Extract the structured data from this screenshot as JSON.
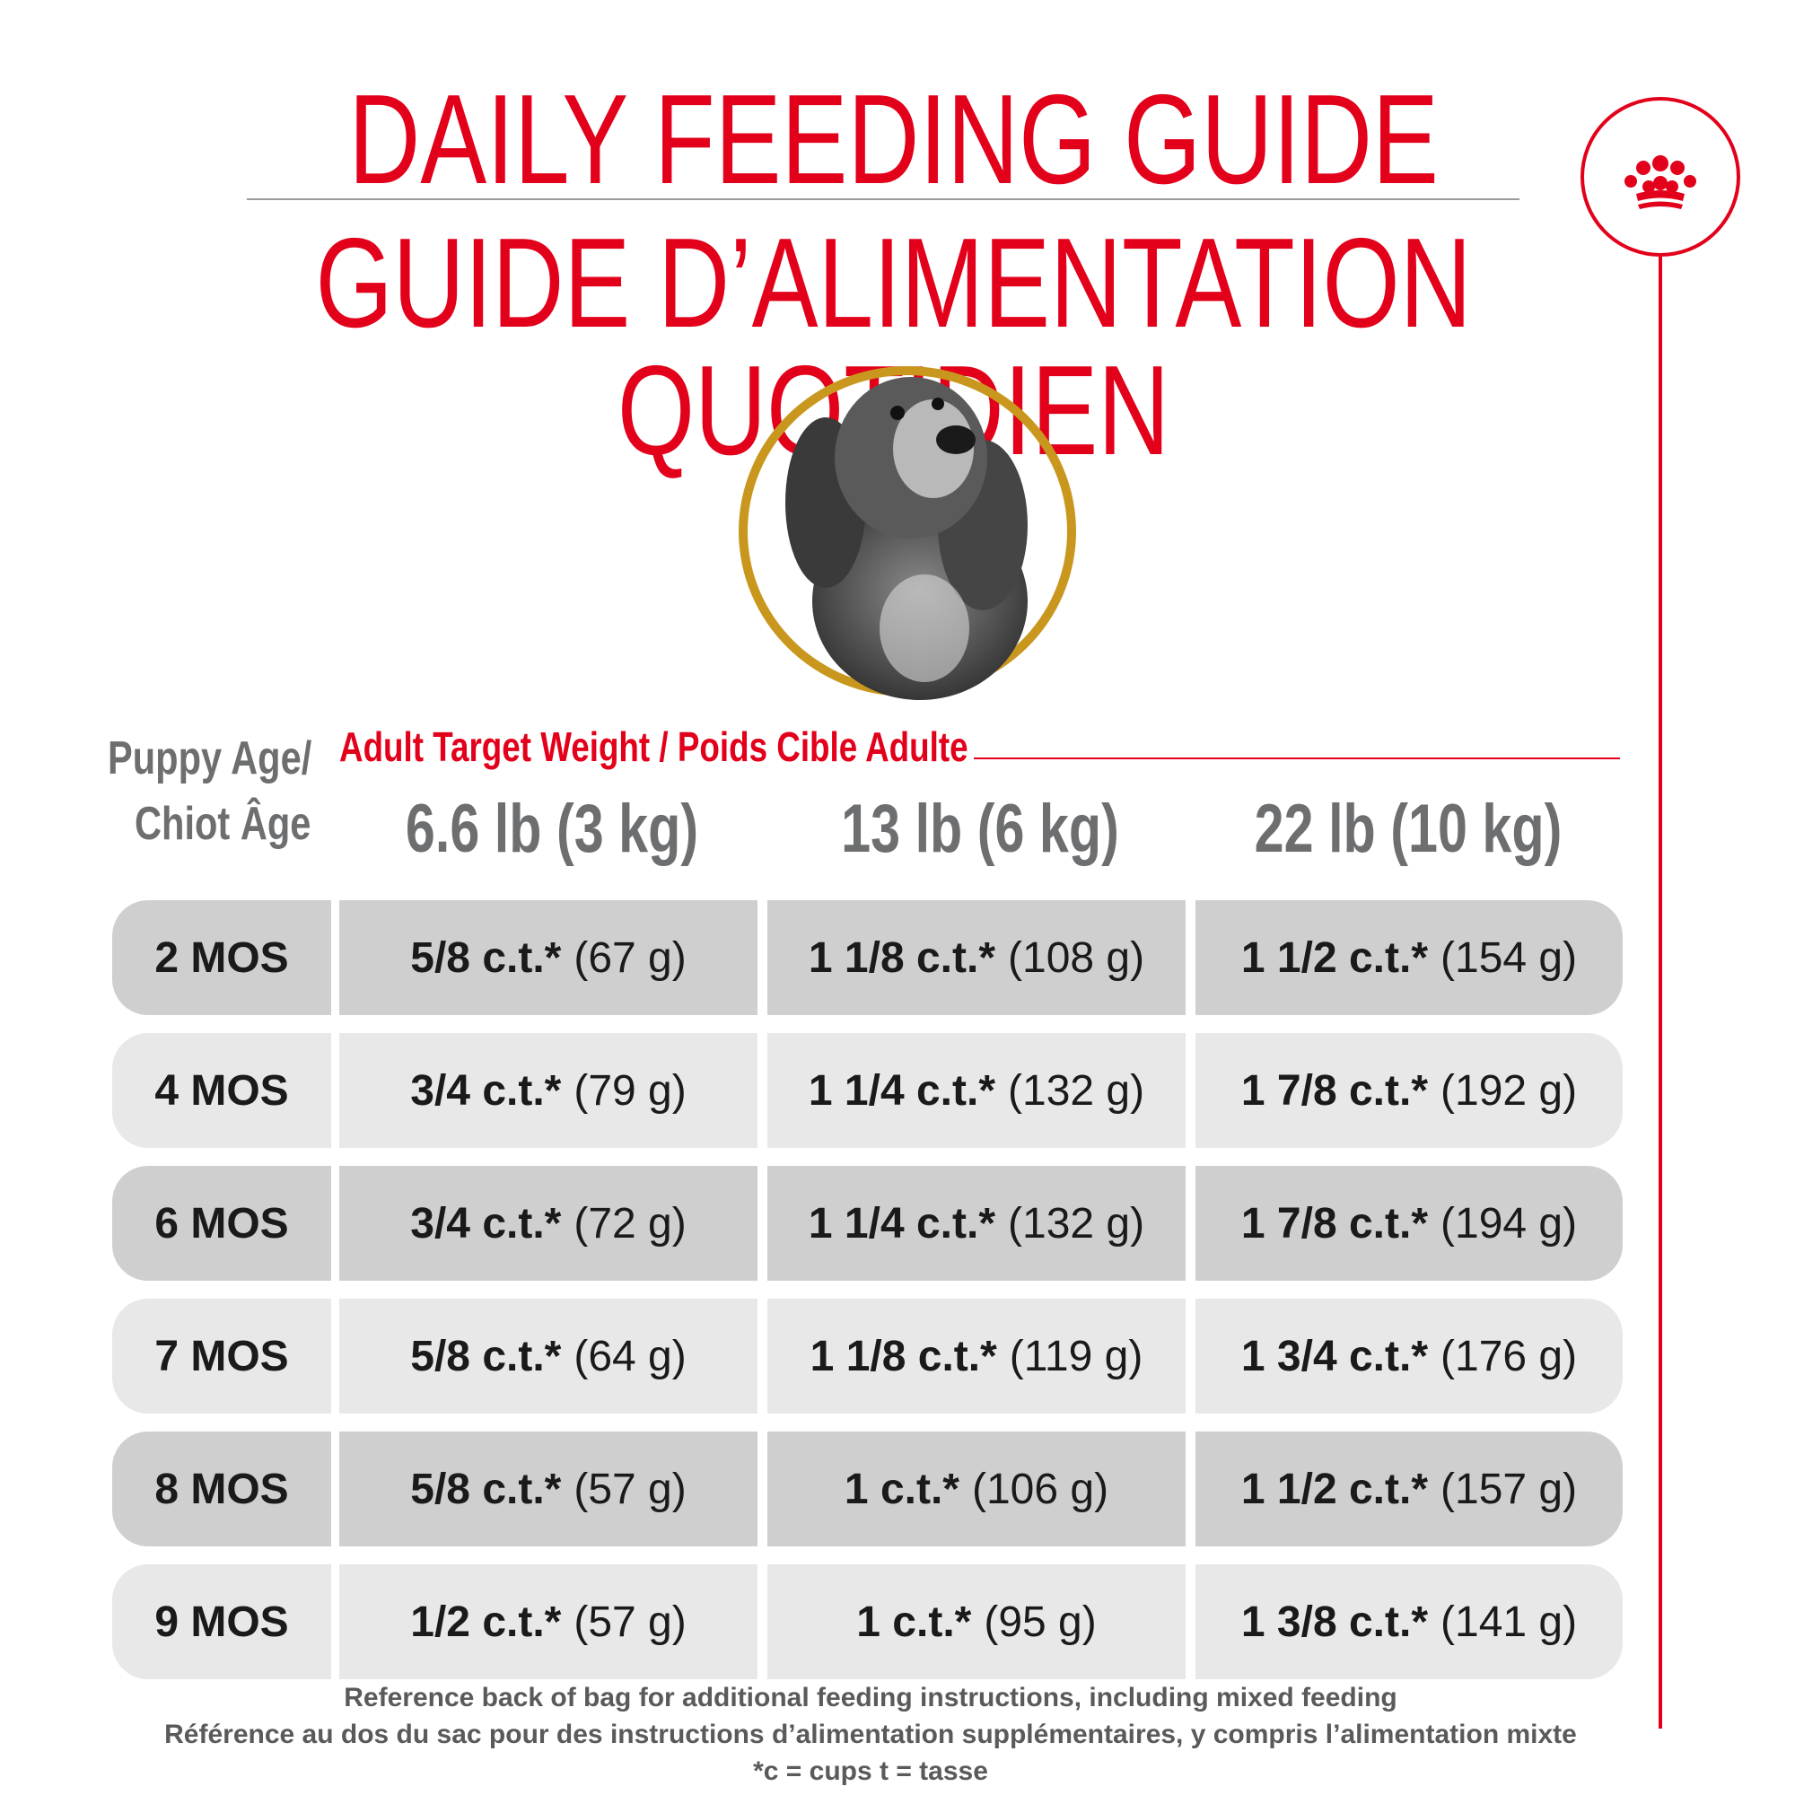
{
  "title_en": "DAILY FEEDING GUIDE",
  "title_fr": "GUIDE D’ALIMENTATION QUOTIDIEN",
  "age_label_line1": "Puppy Age/",
  "age_label_line2": "Chiot Âge",
  "target_weight_label": "Adult Target Weight / Poids Cible Adulte",
  "weights": [
    "6.6 lb (3 kg)",
    "13 lb (6 kg)",
    "22 lb (10 kg)"
  ],
  "rows": [
    {
      "age": "2 MOS",
      "cells": [
        {
          "qty": "5/8 c.t.*",
          "g": "(67 g)"
        },
        {
          "qty": "1 1/8 c.t.*",
          "g": "(108 g)"
        },
        {
          "qty": "1 1/2 c.t.*",
          "g": "(154 g)"
        }
      ]
    },
    {
      "age": "4 MOS",
      "cells": [
        {
          "qty": "3/4 c.t.*",
          "g": "(79 g)"
        },
        {
          "qty": "1 1/4 c.t.*",
          "g": "(132 g)"
        },
        {
          "qty": "1 7/8 c.t.*",
          "g": "(192 g)"
        }
      ]
    },
    {
      "age": "6 MOS",
      "cells": [
        {
          "qty": "3/4 c.t.*",
          "g": "(72 g)"
        },
        {
          "qty": "1 1/4 c.t.*",
          "g": "(132 g)"
        },
        {
          "qty": "1 7/8 c.t.*",
          "g": "(194 g)"
        }
      ]
    },
    {
      "age": "7 MOS",
      "cells": [
        {
          "qty": "5/8 c.t.*",
          "g": "(64 g)"
        },
        {
          "qty": "1 1/8 c.t.*",
          "g": "(119 g)"
        },
        {
          "qty": "1 3/4 c.t.*",
          "g": "(176 g)"
        }
      ]
    },
    {
      "age": "8 MOS",
      "cells": [
        {
          "qty": "5/8 c.t.*",
          "g": "(57 g)"
        },
        {
          "qty": "1 c.t.*",
          "g": "(106 g)"
        },
        {
          "qty": "1 1/2 c.t.*",
          "g": "(157 g)"
        }
      ]
    },
    {
      "age": "9 MOS",
      "cells": [
        {
          "qty": "1/2 c.t.*",
          "g": "(57 g)"
        },
        {
          "qty": "1 c.t.*",
          "g": "(95 g)"
        },
        {
          "qty": "1 3/8 c.t.*",
          "g": "(141 g)"
        }
      ]
    }
  ],
  "footer_en": "Reference back of bag for additional feeding instructions, including mixed feeding",
  "footer_fr": "Référence au dos du sac pour des instructions d’alimentation supplémentaires, y compris l’alimentation mixte",
  "footer_note": "*c = cups t = tasse",
  "colors": {
    "brand_red": "#e2001a",
    "ring_gold": "#c9971e",
    "row_dark": "#cfcfcf",
    "row_light": "#e8e8e8"
  },
  "icons": {
    "logo": "crown-icon",
    "photo": "puppy-photo"
  }
}
